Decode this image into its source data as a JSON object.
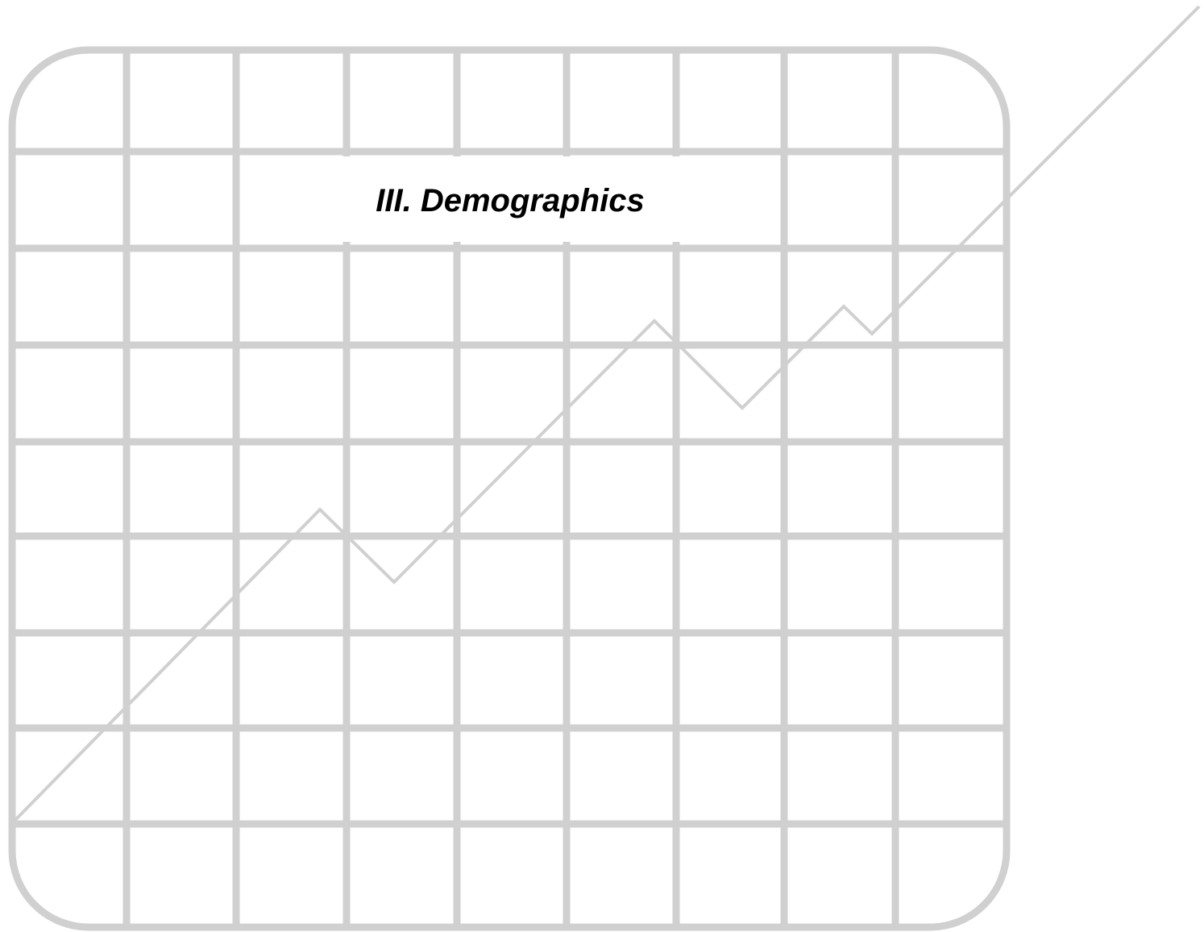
{
  "section": {
    "title": "III. Demographics"
  },
  "decoration": {
    "type": "grid-with-trend-line",
    "line_color": "#d0d0d0",
    "background_color": "#ffffff",
    "text_color": "#000000"
  }
}
